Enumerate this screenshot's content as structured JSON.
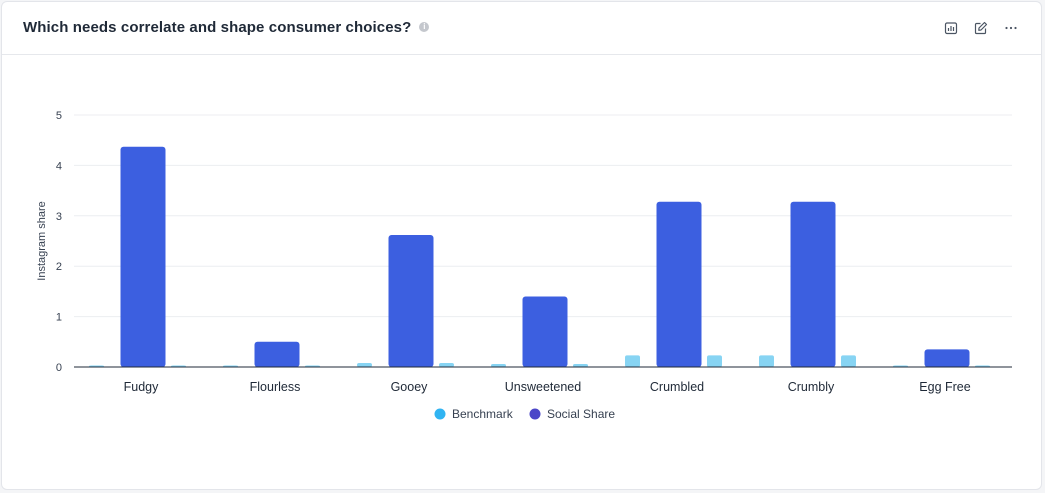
{
  "header": {
    "title": "Which needs correlate and shape consumer choices?",
    "info_icon": "info-icon",
    "tools": [
      {
        "name": "chart-settings-icon"
      },
      {
        "name": "edit-icon"
      },
      {
        "name": "more-options-icon"
      }
    ]
  },
  "colors": {
    "benchmark": "#87d4f3",
    "social_share": "#3c5fe0",
    "benchmark_legend": "#30b4f2",
    "social_share_legend": "#4b46c8",
    "grid": "#eceef1",
    "axis": "#1f2937"
  },
  "chart_data": {
    "type": "bar",
    "title": "",
    "xlabel": "",
    "ylabel": "Instagram share",
    "ylim": [
      0,
      5
    ],
    "yticks": [
      "0",
      "1",
      "2",
      "3",
      "4",
      "5"
    ],
    "grid": true,
    "legend_position": "bottom-center",
    "categories": [
      "Fudgy",
      "Flourless",
      "Gooey",
      "Unsweetened",
      "Crumbled",
      "Crumbly",
      "Egg Free"
    ],
    "series": [
      {
        "name": "Benchmark",
        "values": [
          0.02,
          0.02,
          0.08,
          0.06,
          0.23,
          0.23,
          0.02
        ]
      },
      {
        "name": "Social Share",
        "values": [
          4.37,
          0.5,
          2.62,
          1.4,
          3.28,
          3.28,
          0.35
        ]
      }
    ]
  }
}
